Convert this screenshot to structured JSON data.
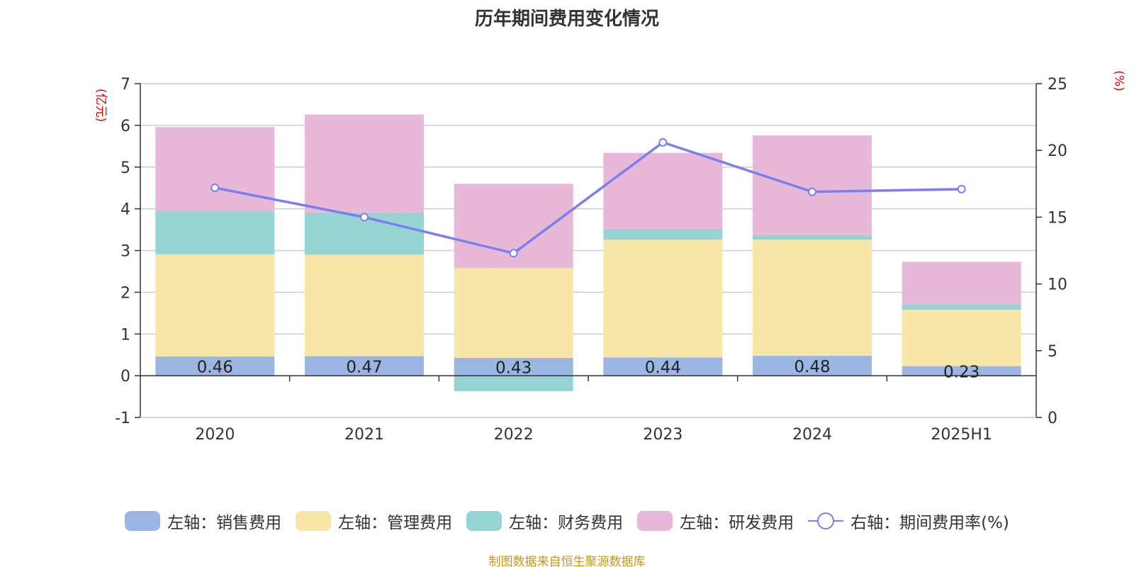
{
  "title": "历年期间费用变化情况",
  "left_axis_unit": "(亿元)",
  "right_axis_unit": "(%)",
  "source": "制图数据来自恒生聚源数据库",
  "chart_data": {
    "type": "bar",
    "stacked": true,
    "title": "历年期间费用变化情况",
    "categories": [
      "2020",
      "2021",
      "2022",
      "2023",
      "2024",
      "2025H1"
    ],
    "ylim_left": [
      -1,
      7
    ],
    "yticks_left": [
      -1,
      0,
      1,
      2,
      3,
      4,
      5,
      6,
      7
    ],
    "ylim_right": [
      0,
      25
    ],
    "yticks_right": [
      0,
      5,
      10,
      15,
      20,
      25
    ],
    "grid": true,
    "legend_position": "bottom",
    "series": [
      {
        "name": "左轴：销售费用",
        "axis": "left",
        "kind": "bar",
        "color": "#9bb6e2",
        "values": [
          0.46,
          0.47,
          0.43,
          0.44,
          0.48,
          0.23
        ],
        "labels": [
          "0.46",
          "0.47",
          "0.43",
          "0.44",
          "0.48",
          "0.23"
        ]
      },
      {
        "name": "左轴：管理费用",
        "axis": "left",
        "kind": "bar",
        "color": "#f8e6a8",
        "values": [
          2.45,
          2.43,
          2.15,
          2.82,
          2.78,
          1.35
        ]
      },
      {
        "name": "左轴：财务费用",
        "axis": "left",
        "kind": "bar",
        "color": "#96d4d4",
        "values": [
          1.03,
          1.0,
          -0.37,
          0.26,
          0.12,
          0.12
        ]
      },
      {
        "name": "左轴：研发费用",
        "axis": "left",
        "kind": "bar",
        "color": "#e7b8d8",
        "values": [
          2.02,
          2.36,
          2.02,
          1.82,
          2.38,
          1.03
        ]
      },
      {
        "name": "右轴：期间费用率(%)",
        "axis": "right",
        "kind": "line",
        "color": "#7a7ff0",
        "values": [
          17.2,
          15.0,
          12.3,
          20.6,
          16.9,
          17.1
        ]
      }
    ]
  }
}
